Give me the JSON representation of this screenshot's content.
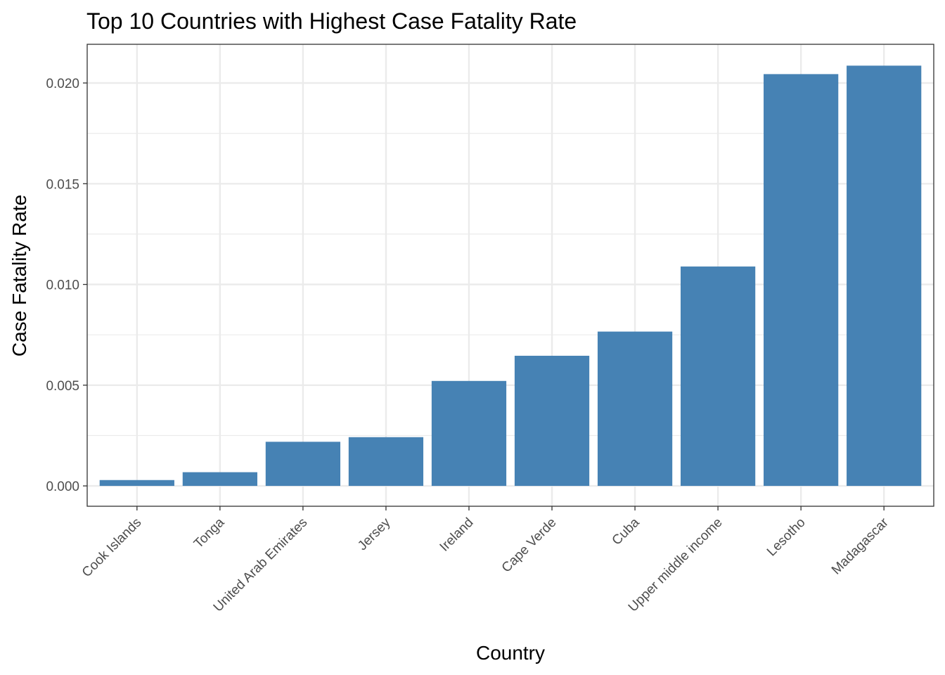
{
  "chart_data": {
    "type": "bar",
    "title": "Top 10 Countries with Highest Case Fatality Rate",
    "xlabel": "Country",
    "ylabel": "Case Fatality Rate",
    "categories": [
      "Cook Islands",
      "Tonga",
      "United Arab Emirates",
      "Jersey",
      "Ireland",
      "Cape Verde",
      "Cuba",
      "Upper middle income",
      "Lesotho",
      "Madagascar"
    ],
    "values": [
      0.00029,
      0.00068,
      0.00219,
      0.00242,
      0.00521,
      0.00646,
      0.00766,
      0.01089,
      0.02044,
      0.02086
    ],
    "ylim": [
      -0.00101,
      0.02192
    ],
    "yticks": [
      0.0,
      0.005,
      0.01,
      0.015,
      0.02
    ],
    "ytick_labels": [
      "0.000",
      "0.005",
      "0.010",
      "0.015",
      "0.020"
    ],
    "grid": true,
    "bar_color": "#4682B4",
    "legend": "none"
  }
}
